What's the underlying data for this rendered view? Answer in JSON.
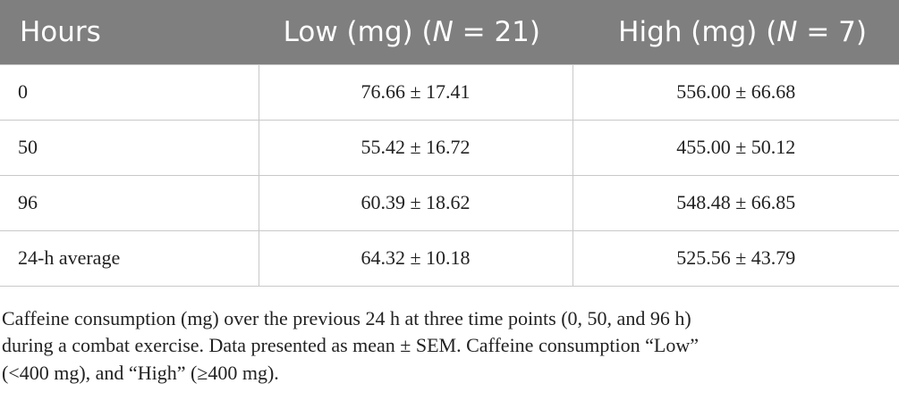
{
  "table": {
    "header": [
      [
        {
          "text": "Hours"
        }
      ],
      [
        {
          "text": "Low (mg) ("
        },
        {
          "text": "N",
          "italic": true
        },
        {
          "text": " = 21)"
        }
      ],
      [
        {
          "text": "High (mg) ("
        },
        {
          "text": "N",
          "italic": true
        },
        {
          "text": " = 7)"
        }
      ]
    ],
    "rows": [
      [
        "0",
        "76.66 ± 17.41",
        "556.00 ± 66.68"
      ],
      [
        "50",
        "55.42 ± 16.72",
        "455.00 ± 50.12"
      ],
      [
        "96",
        "60.39 ± 18.62",
        "548.48 ± 66.85"
      ],
      [
        "24-h average",
        "64.32 ± 10.18",
        "525.56 ± 43.79"
      ]
    ]
  },
  "caption": [
    "Caffeine consumption (mg) over the previous 24 h at three time points (0, 50, and 96 h)",
    "during a combat exercise. Data presented as mean ± SEM. Caffeine consumption “Low”",
    "(<400 mg), and “High” (≥400 mg)."
  ]
}
